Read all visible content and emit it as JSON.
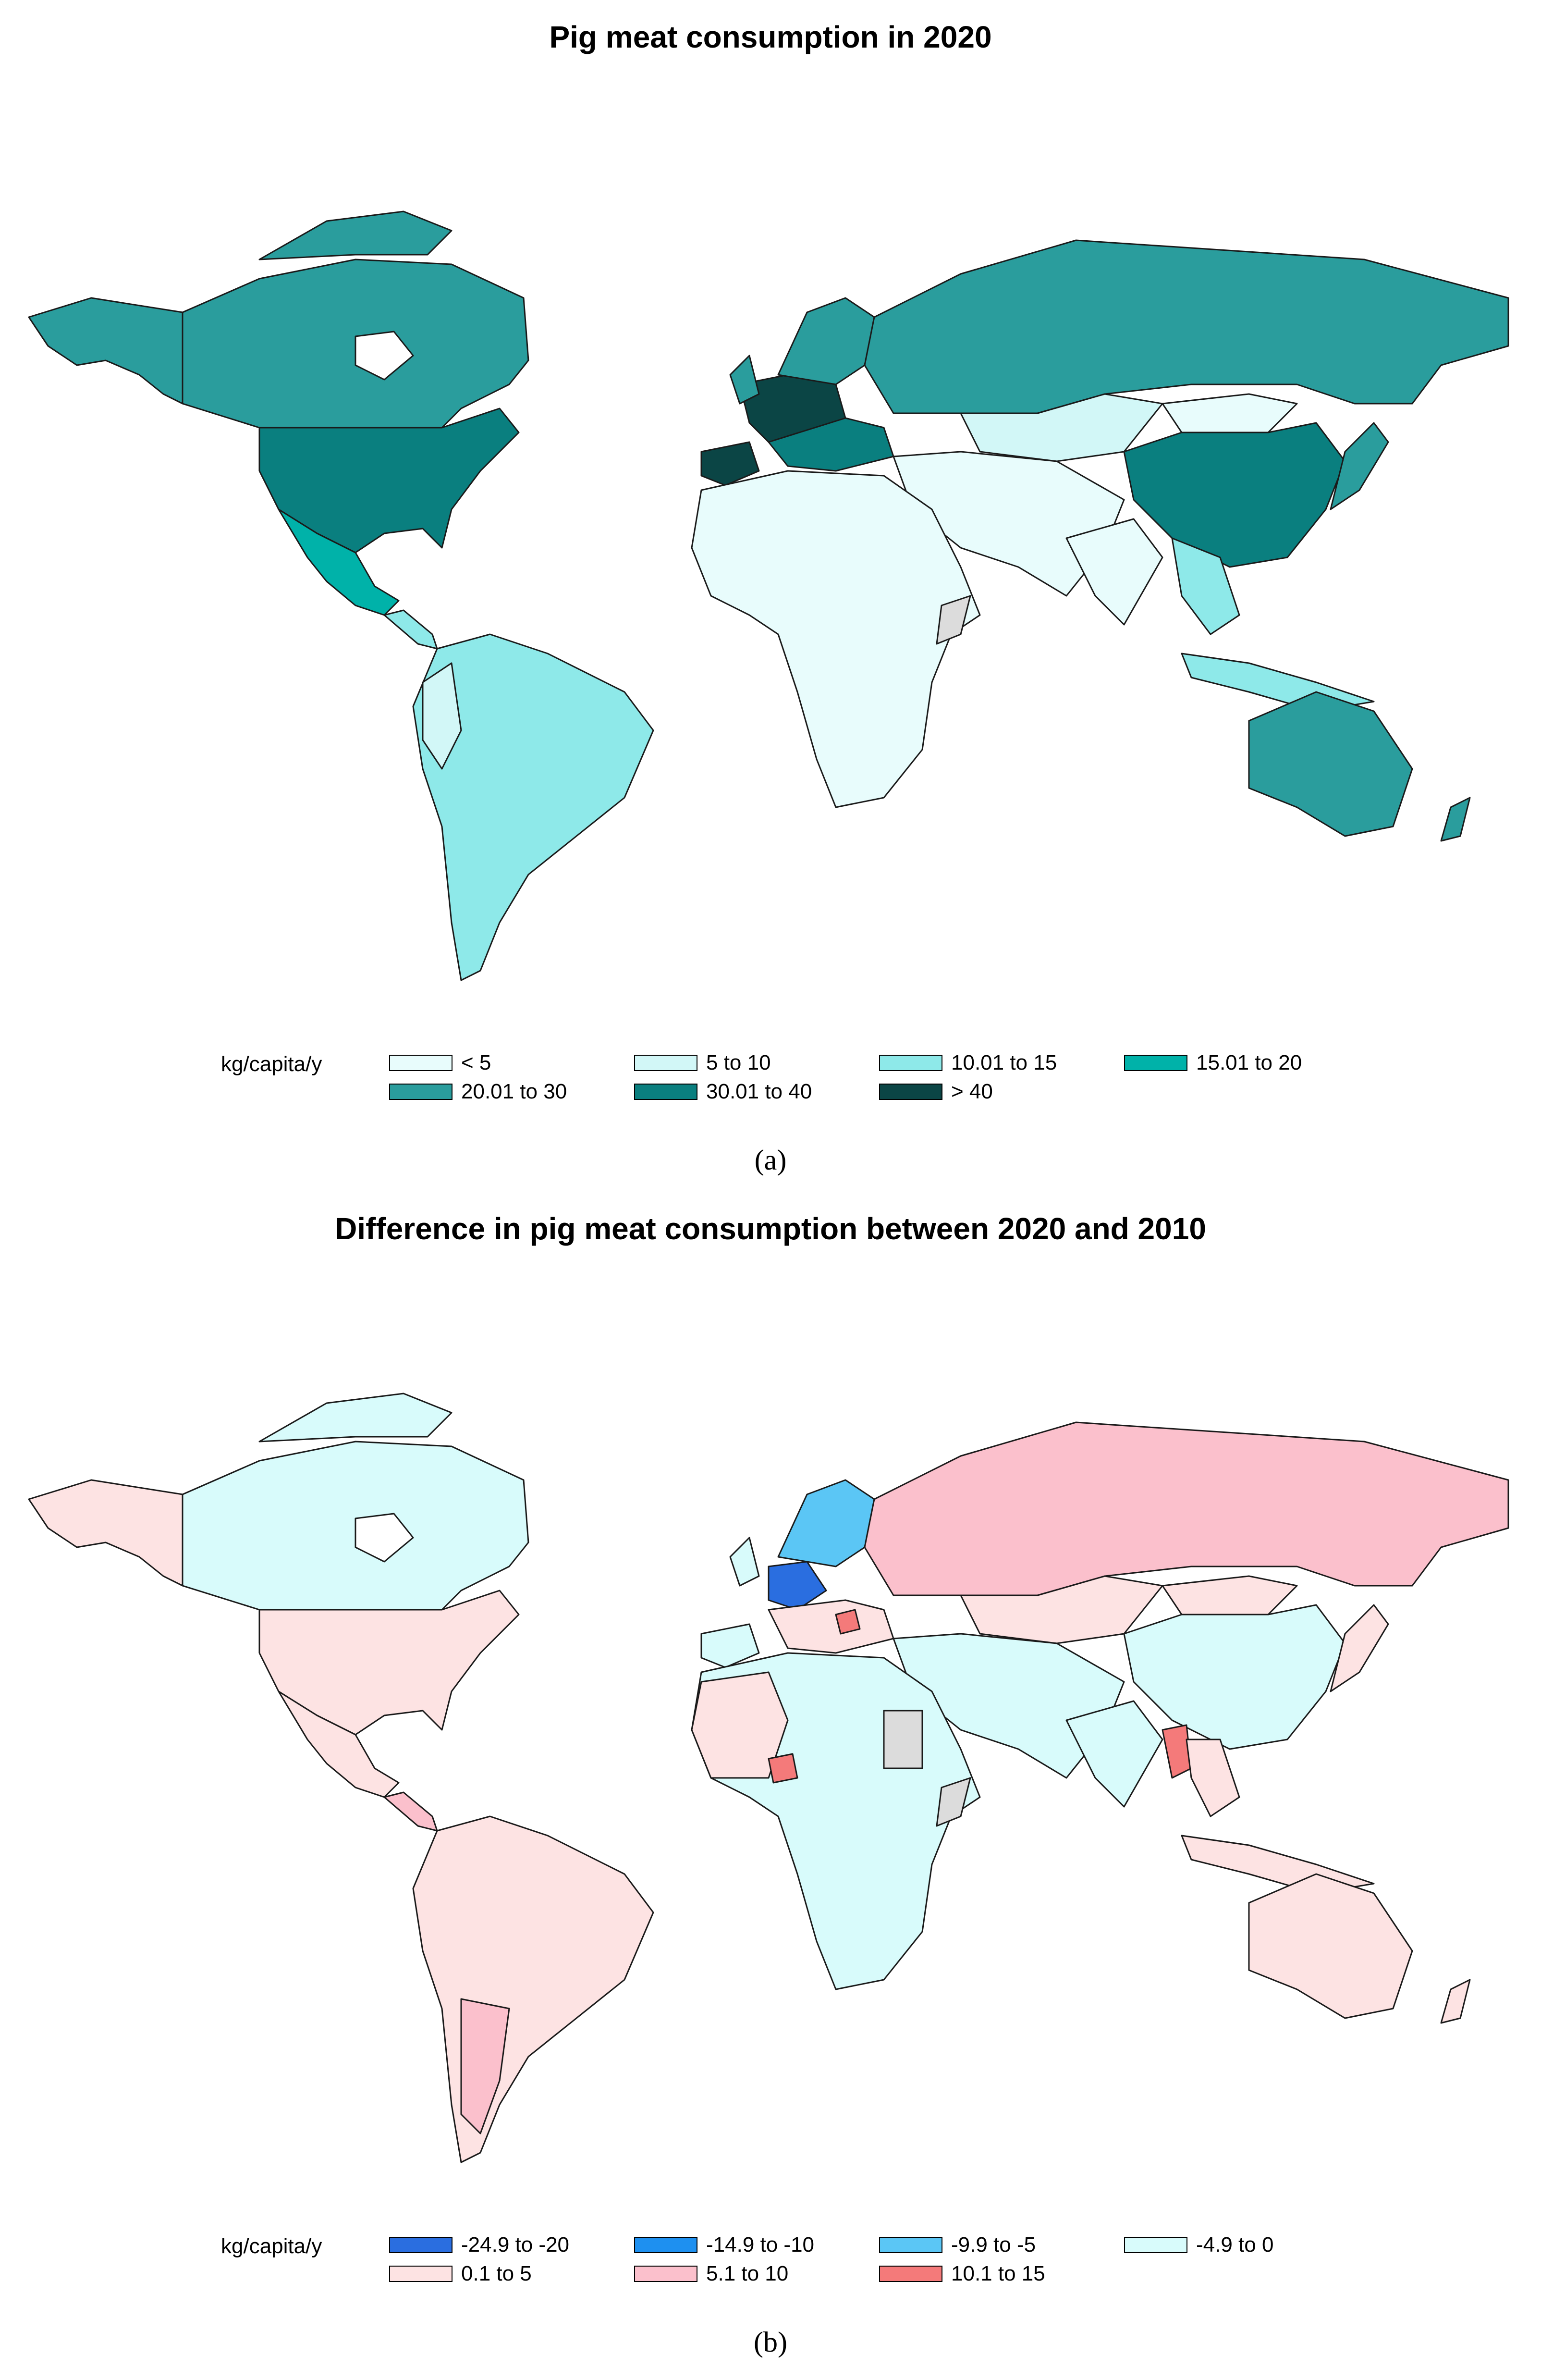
{
  "figure_a": {
    "title": "Pig meat consumption in 2020",
    "caption": "(a)",
    "legend": {
      "unit": "kg/capita/y",
      "items": [
        {
          "label": "< 5",
          "color": "#e8fcfc"
        },
        {
          "label": "5 to 10",
          "color": "#d2f7f7"
        },
        {
          "label": "10.01 to 15",
          "color": "#8ee9e9"
        },
        {
          "label": "15.01 to 20",
          "color": "#00b2a9"
        },
        {
          "label": "20.01 to 30",
          "color": "#2a9d9d"
        },
        {
          "label": "30.01 to 40",
          "color": "#0a7f7f"
        },
        {
          "label": "> 40",
          "color": "#0b4545"
        }
      ]
    }
  },
  "figure_b": {
    "title": "Difference in pig meat consumption between 2020 and 2010",
    "caption": "(b)",
    "legend": {
      "unit": "kg/capita/y",
      "items": [
        {
          "label": "-24.9 to -20",
          "color": "#2a6ee0"
        },
        {
          "label": "-14.9 to -10",
          "color": "#1e90f0"
        },
        {
          "label": "-9.9 to -5",
          "color": "#5bc6f5"
        },
        {
          "label": "-4.9 to 0",
          "color": "#d8fbfb"
        },
        {
          "label": "0.1 to 5",
          "color": "#fde3e3"
        },
        {
          "label": "5.1 to 10",
          "color": "#fbc0cc"
        },
        {
          "label": "10.1 to 15",
          "color": "#f47a7a"
        }
      ]
    }
  }
}
